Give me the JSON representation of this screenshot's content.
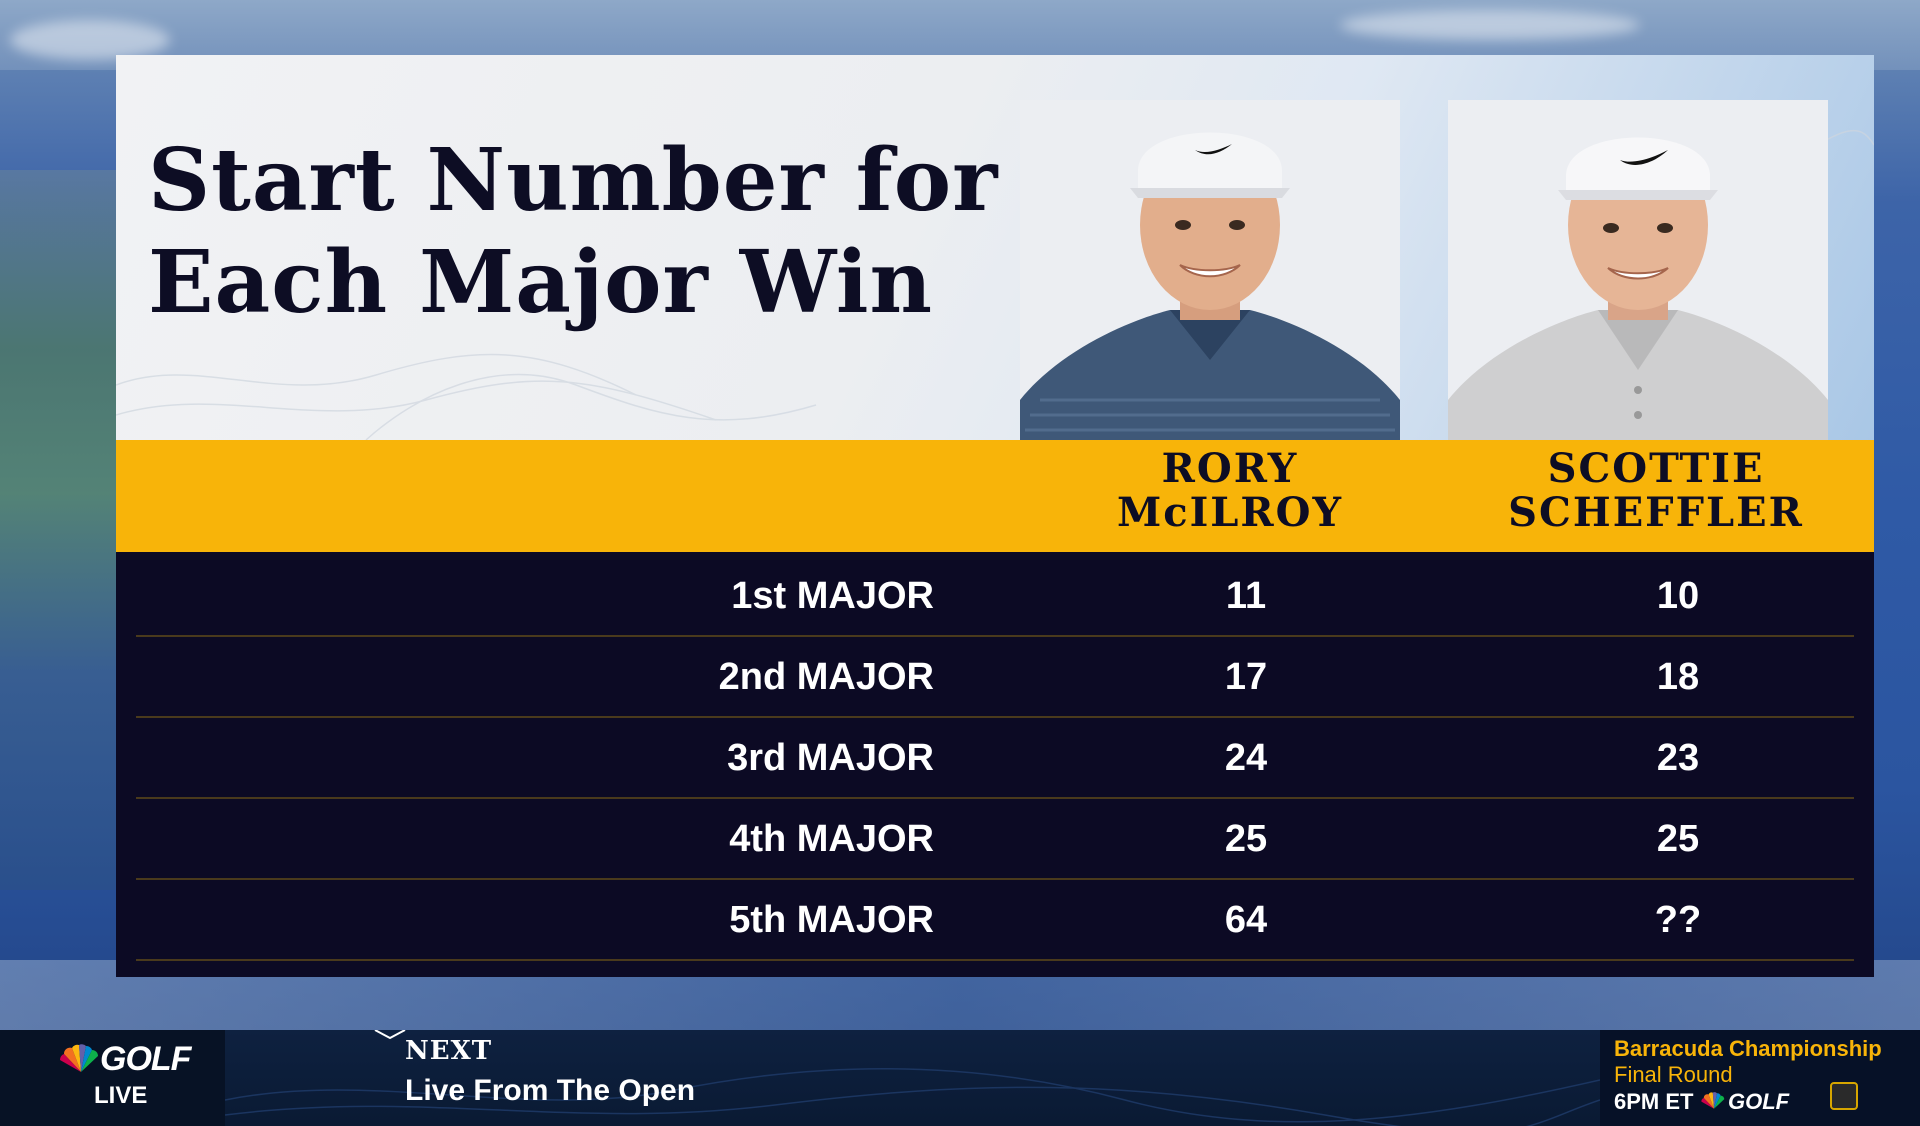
{
  "graphic": {
    "title_line1": "Start Number for",
    "title_line2": "Each Major Win",
    "players": [
      {
        "first": "RORY",
        "last": "McILROY"
      },
      {
        "first": "SCOTTIE",
        "last": "SCHEFFLER"
      }
    ],
    "rows": [
      {
        "label": "1st MAJOR",
        "rory": "11",
        "scottie": "10"
      },
      {
        "label": "2nd MAJOR",
        "rory": "17",
        "scottie": "18"
      },
      {
        "label": "3rd MAJOR",
        "rory": "24",
        "scottie": "23"
      },
      {
        "label": "4th MAJOR",
        "rory": "25",
        "scottie": "25"
      },
      {
        "label": "5th MAJOR",
        "rory": "64",
        "scottie": "??"
      }
    ]
  },
  "ticker": {
    "network": "GOLF",
    "live": "LIVE",
    "next_label": "NEXT",
    "next_show": "Live From The Open",
    "upcoming_event": "Barracuda Championship",
    "upcoming_round": "Final Round",
    "upcoming_time": "6PM ET",
    "upcoming_network": "GOLF"
  },
  "colors": {
    "accent_gold": "#f8b409",
    "table_bg": "#0c0a24",
    "title_text": "#0d0d24"
  }
}
